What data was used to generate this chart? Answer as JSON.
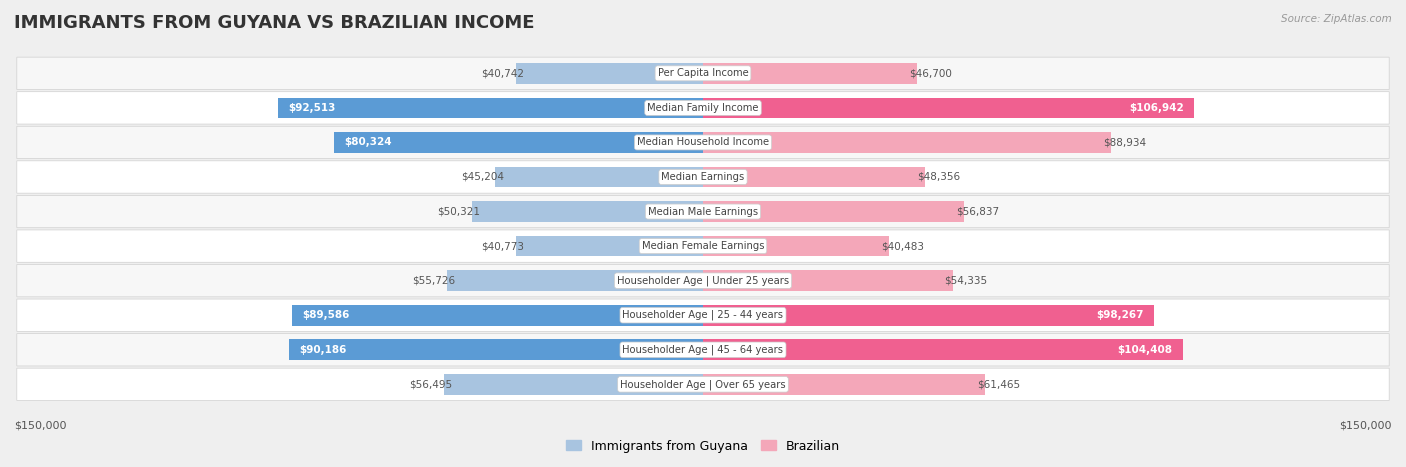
{
  "title": "IMMIGRANTS FROM GUYANA VS BRAZILIAN INCOME",
  "source": "Source: ZipAtlas.com",
  "categories": [
    "Per Capita Income",
    "Median Family Income",
    "Median Household Income",
    "Median Earnings",
    "Median Male Earnings",
    "Median Female Earnings",
    "Householder Age | Under 25 years",
    "Householder Age | 25 - 44 years",
    "Householder Age | 45 - 64 years",
    "Householder Age | Over 65 years"
  ],
  "guyana_values": [
    40742,
    92513,
    80324,
    45204,
    50321,
    40773,
    55726,
    89586,
    90186,
    56495
  ],
  "brazilian_values": [
    46700,
    106942,
    88934,
    48356,
    56837,
    40483,
    54335,
    98267,
    104408,
    61465
  ],
  "guyana_dark_indices": [
    1,
    2,
    7,
    8
  ],
  "brazilian_dark_indices": [
    1,
    7,
    8
  ],
  "guyana_color_light": "#a8c4e0",
  "guyana_color_dark": "#5b9bd5",
  "brazilian_color_light": "#f4a7b9",
  "brazilian_color_dark": "#f06090",
  "max_value": 150000,
  "label_fontsize": 7.5,
  "title_fontsize": 13,
  "background_color": "#efefef",
  "row_bg_even": "#f7f7f7",
  "row_bg_odd": "#ffffff",
  "axis_label": "$150,000",
  "legend_guyana": "Immigrants from Guyana",
  "legend_brazilian": "Brazilian"
}
